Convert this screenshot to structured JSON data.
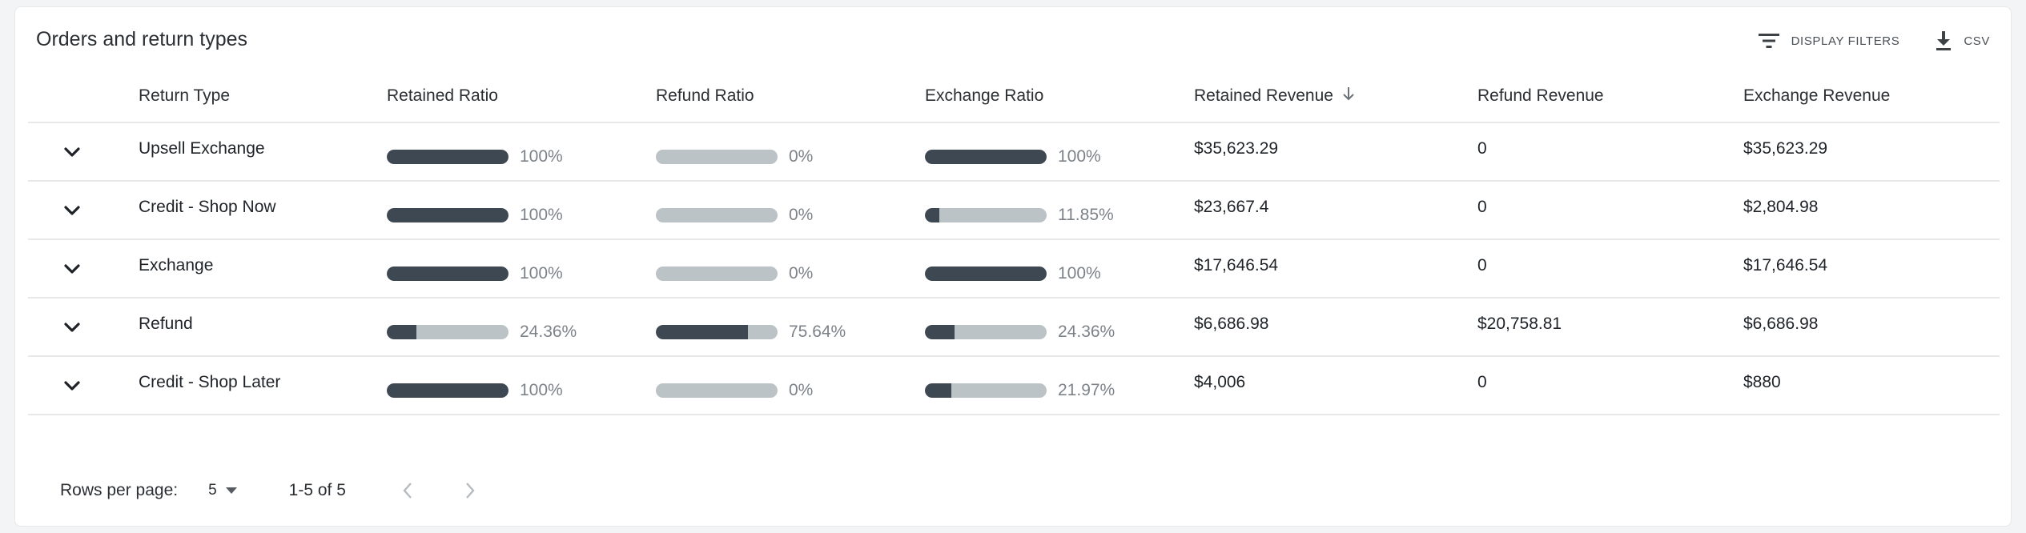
{
  "card": {
    "title": "Orders and return types",
    "display_filters_label": "DISPLAY FILTERS",
    "csv_label": "CSV"
  },
  "table": {
    "columns": [
      "Return Type",
      "Retained Ratio",
      "Refund Ratio",
      "Exchange Ratio",
      "Retained Revenue",
      "Refund Revenue",
      "Exchange Revenue"
    ],
    "sort": {
      "column": "Retained Revenue",
      "direction": "descending"
    },
    "rows": [
      {
        "return_type": "Upsell Exchange",
        "retained_ratio": 100,
        "retained_ratio_label": "100%",
        "refund_ratio": 0,
        "refund_ratio_label": "0%",
        "exchange_ratio": 100,
        "exchange_ratio_label": "100%",
        "retained_revenue": "$35,623.29",
        "refund_revenue": "0",
        "exchange_revenue": "$35,623.29"
      },
      {
        "return_type": "Credit - Shop Now",
        "retained_ratio": 100,
        "retained_ratio_label": "100%",
        "refund_ratio": 0,
        "refund_ratio_label": "0%",
        "exchange_ratio": 11.85,
        "exchange_ratio_label": "11.85%",
        "retained_revenue": "$23,667.4",
        "refund_revenue": "0",
        "exchange_revenue": "$2,804.98"
      },
      {
        "return_type": "Exchange",
        "retained_ratio": 100,
        "retained_ratio_label": "100%",
        "refund_ratio": 0,
        "refund_ratio_label": "0%",
        "exchange_ratio": 100,
        "exchange_ratio_label": "100%",
        "retained_revenue": "$17,646.54",
        "refund_revenue": "0",
        "exchange_revenue": "$17,646.54"
      },
      {
        "return_type": "Refund",
        "retained_ratio": 24.36,
        "retained_ratio_label": "24.36%",
        "refund_ratio": 75.64,
        "refund_ratio_label": "75.64%",
        "exchange_ratio": 24.36,
        "exchange_ratio_label": "24.36%",
        "retained_revenue": "$6,686.98",
        "refund_revenue": "$20,758.81",
        "exchange_revenue": "$6,686.98"
      },
      {
        "return_type": "Credit - Shop Later",
        "retained_ratio": 100,
        "retained_ratio_label": "100%",
        "refund_ratio": 0,
        "refund_ratio_label": "0%",
        "exchange_ratio": 21.97,
        "exchange_ratio_label": "21.97%",
        "retained_revenue": "$4,006",
        "refund_revenue": "0",
        "exchange_revenue": "$880"
      }
    ]
  },
  "pagination": {
    "rows_per_page_label": "Rows per page:",
    "rows_per_page_value": "5",
    "range_label": "1-5 of 5"
  },
  "icons": {
    "expand": "chevron-down-icon",
    "sort": "arrow-down-icon",
    "filter": "filter-icon",
    "download": "download-icon",
    "select": "caret-down-icon",
    "prev": "chevron-left-icon",
    "next": "chevron-right-icon"
  },
  "colors": {
    "bar_fill": "#3d4852",
    "bar_track": "#bcc3c7"
  }
}
